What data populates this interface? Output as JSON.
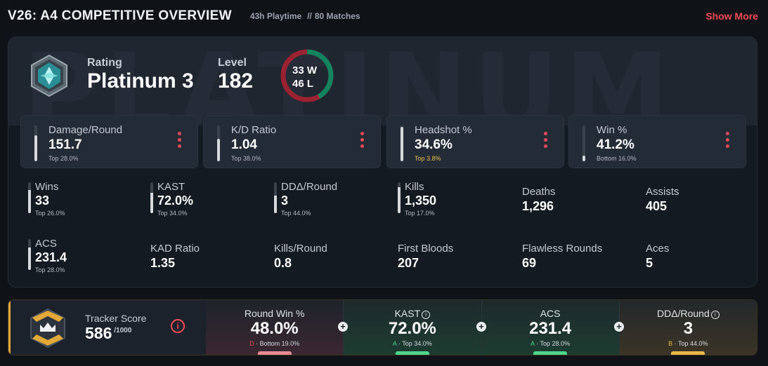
{
  "header": {
    "title": "V26: A4 COMPETITIVE OVERVIEW",
    "playtime": "43h Playtime",
    "sep": "//",
    "matches": "80 Matches",
    "show_more": "Show More"
  },
  "overview": {
    "watermark": "PLATINUM",
    "rating_label": "Rating",
    "rating_value": "Platinum 3",
    "level_label": "Level",
    "level_value": "182",
    "wins": "33 W",
    "losses": "46 L",
    "win_count": 33,
    "loss_count": 46,
    "colors": {
      "win": "#12855f",
      "loss": "#9b2230"
    }
  },
  "top_stats": [
    {
      "label": "Damage/Round",
      "value": "151.7",
      "sub": "Top 28.0%",
      "fill": 0.72
    },
    {
      "label": "K/D Ratio",
      "value": "1.04",
      "sub": "Top 38.0%",
      "fill": 0.62
    },
    {
      "label": "Headshot %",
      "value": "34.6%",
      "sub": "Top 3.8%",
      "fill": 0.96
    },
    {
      "label": "Win %",
      "value": "41.2%",
      "sub": "Bottom 16.0%",
      "fill": 0.16
    }
  ],
  "grid_stats": [
    {
      "label": "Wins",
      "value": "33",
      "sub": "Top 26.0%",
      "fill": 0.74
    },
    {
      "label": "KAST",
      "value": "72.0%",
      "sub": "Top 34.0%",
      "fill": 0.66
    },
    {
      "label": "DDΔ/Round",
      "value": "3",
      "sub": "Top 44.0%",
      "fill": 0.56
    },
    {
      "label": "Kills",
      "value": "1,350",
      "sub": "Top 17.0%",
      "fill": 0.83
    },
    {
      "label": "Deaths",
      "value": "1,296"
    },
    {
      "label": "Assists",
      "value": "405"
    },
    {
      "label": "ACS",
      "value": "231.4",
      "sub": "Top 28.0%",
      "fill": 0.72
    },
    {
      "label": "KAD Ratio",
      "value": "1.35"
    },
    {
      "label": "Kills/Round",
      "value": "0.8"
    },
    {
      "label": "First Bloods",
      "value": "207"
    },
    {
      "label": "Flawless Rounds",
      "value": "69"
    },
    {
      "label": "Aces",
      "value": "5"
    }
  ],
  "tracker": {
    "label": "Tracker Score",
    "score": "586",
    "max": "/1000",
    "info": "i",
    "cells": [
      {
        "label": "Round Win %",
        "value": "48.0%",
        "sub": "D · Bottom 19.0%",
        "pill": "#e78a93",
        "grade_color": "#e2505c"
      },
      {
        "label": "KAST",
        "value": "72.0%",
        "sub": "A · Top 34.0%",
        "pill": "#4fd68b",
        "grade_color": "#4fd68b"
      },
      {
        "label": "ACS",
        "value": "231.4",
        "sub": "A · Top 28.0%",
        "pill": "#4fd68b",
        "grade_color": "#4fd68b"
      },
      {
        "label": "DDΔ/Round",
        "value": "3",
        "sub": "B · Top 44.0%",
        "pill": "#e8b84a",
        "grade_color": "#e8b84a"
      }
    ]
  }
}
